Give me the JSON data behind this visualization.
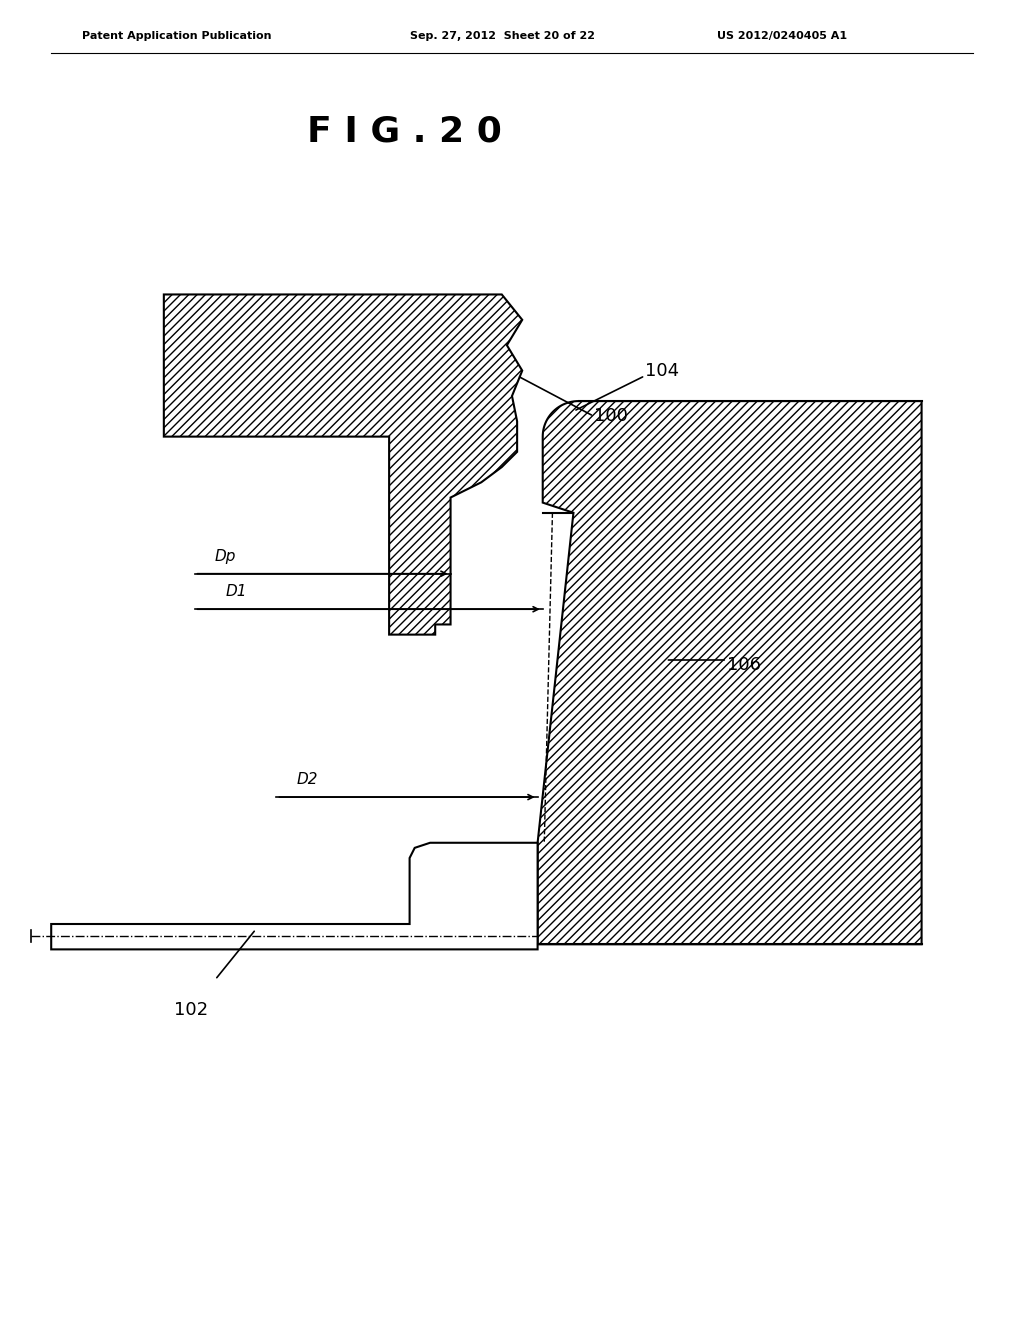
{
  "title": "F I G . 2 0",
  "header_left": "Patent Application Publication",
  "header_mid": "Sep. 27, 2012  Sheet 20 of 22",
  "header_right": "US 2012/0240405 A1",
  "bg_color": "#ffffff",
  "label_100": "100",
  "label_102": "102",
  "label_104": "104",
  "label_106": "106",
  "label_Dp": "Dp",
  "label_D1": "D1",
  "label_D2": "D2",
  "hatch_pattern": "////",
  "line_color": "#000000"
}
